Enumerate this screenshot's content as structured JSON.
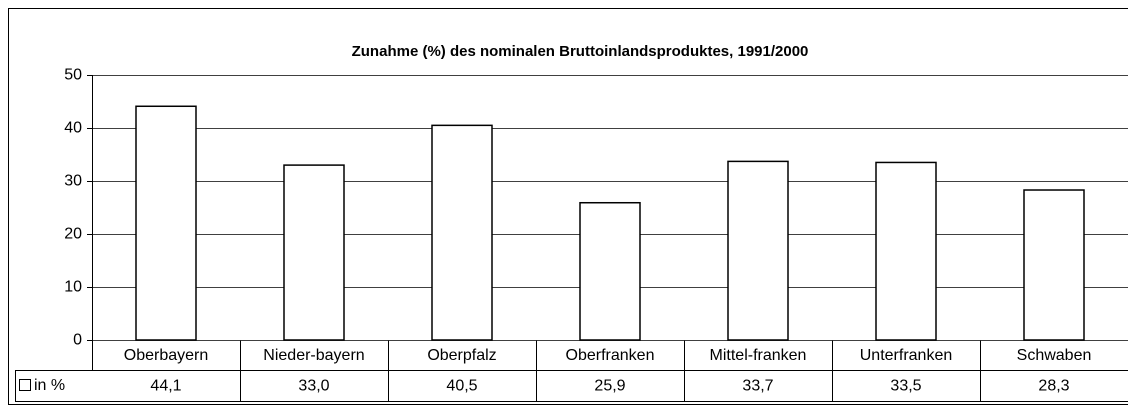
{
  "chart_data": {
    "type": "bar",
    "title": "Zunahme (%) des nominalen Bruttoinlandsproduktes, 1991/2000",
    "categories": [
      "Oberbayern",
      "Nieder-bayern",
      "Oberpfalz",
      "Oberfranken",
      "Mittel-franken",
      "Unterfranken",
      "Schwaben"
    ],
    "series": [
      {
        "name": "in %",
        "color": "#ffffff",
        "values": [
          44.1,
          33.0,
          40.5,
          25.9,
          33.7,
          33.5,
          28.3
        ],
        "value_labels": [
          "44,1",
          "33,0",
          "40,5",
          "25,9",
          "33,7",
          "33,5",
          "28,3"
        ]
      }
    ],
    "ylim": [
      0,
      50
    ],
    "yticks": [
      0,
      10,
      20,
      30,
      40,
      50
    ],
    "grid": true
  }
}
